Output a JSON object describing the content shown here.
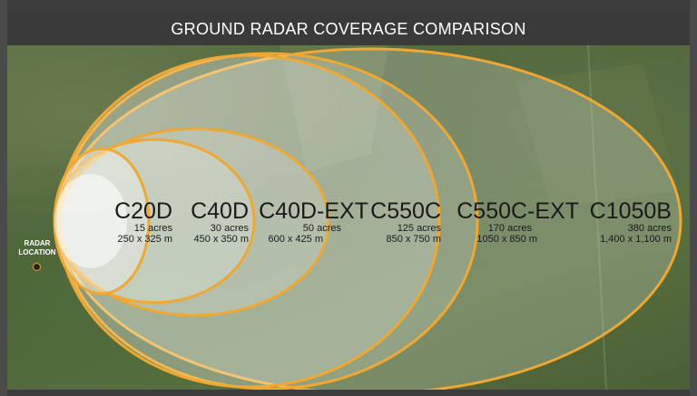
{
  "header": {
    "title": "GROUND RADAR COVERAGE COMPARISON"
  },
  "radar": {
    "label_line1": "RADAR",
    "label_line2": "LOCATION"
  },
  "colors": {
    "ring": "#f0a830",
    "header_bg": "#3a3a3a",
    "fill": "#ffffff"
  },
  "models": [
    {
      "name": "C20D",
      "acres": "15 acres",
      "dims": "250 x 325 m"
    },
    {
      "name": "C40D",
      "acres": "30 acres",
      "dims": "450 x 350 m"
    },
    {
      "name": "C40D-EXT",
      "acres": "50  acres",
      "dims": "600 x 425 m"
    },
    {
      "name": "C550C",
      "acres": "125 acres",
      "dims": "850 x 750 m"
    },
    {
      "name": "C550C-EXT",
      "acres": "170  acres",
      "dims": "1050 x 850 m"
    },
    {
      "name": "C1050B",
      "acres": "380 acres",
      "dims": "1,400 x 1,100 m"
    }
  ]
}
